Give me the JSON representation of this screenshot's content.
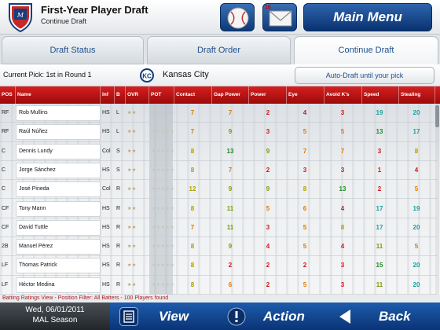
{
  "header": {
    "title": "First-Year Player Draft",
    "subtitle": "Continue Draft",
    "mail_count": "16",
    "main_menu": "Main Menu",
    "brand_color": "#0d3a78"
  },
  "tabs": [
    {
      "label": "Draft Status",
      "active": false
    },
    {
      "label": "Draft Order",
      "active": false
    },
    {
      "label": "Continue Draft",
      "active": true
    }
  ],
  "pick": {
    "current": "Current Pick: 1st in Round 1",
    "team": "Kansas City",
    "autodraft": "Auto-Draft until your pick"
  },
  "table": {
    "columns": [
      "POS",
      "Name",
      "Inf",
      "B",
      "OVR",
      "POT",
      "Contact",
      "Gap Power",
      "Power",
      "Eye",
      "Avoid K's",
      "Speed",
      "Stealing"
    ],
    "rows": [
      {
        "pos": "RF",
        "name": "Rob Mullins",
        "inf": "HS",
        "b": "L",
        "ovr": "★★",
        "pot": "★★★★★",
        "stats": [
          "7",
          "7",
          "2",
          "4",
          "3",
          "19",
          "20"
        ],
        "colors": [
          "#e07b00",
          "#e07b00",
          "#d01818",
          "#d01818",
          "#d01818",
          "#17a3a0",
          "#17a3a0"
        ]
      },
      {
        "pos": "RF",
        "name": "Raúl Núñez",
        "inf": "HS",
        "b": "L",
        "ovr": "★★",
        "pot": "★★★★★",
        "stats": [
          "7",
          "9",
          "3",
          "5",
          "5",
          "13",
          "17"
        ],
        "colors": [
          "#e07b00",
          "#7a9a10",
          "#d01818",
          "#e07b00",
          "#e07b00",
          "#1f8a2a",
          "#17a3a0"
        ]
      },
      {
        "pos": "C",
        "name": "Dennis Lundy",
        "inf": "Col",
        "b": "S",
        "ovr": "★★",
        "pot": "★★★★★",
        "stats": [
          "8",
          "13",
          "9",
          "7",
          "7",
          "3",
          "8"
        ],
        "colors": [
          "#b0a000",
          "#1f8a2a",
          "#7a9a10",
          "#e07b00",
          "#e07b00",
          "#d01818",
          "#b0a000"
        ]
      },
      {
        "pos": "C",
        "name": "Jorge Sánchez",
        "inf": "HS",
        "b": "S",
        "ovr": "★★",
        "pot": "★★★★★",
        "stats": [
          "8",
          "7",
          "2",
          "3",
          "3",
          "1",
          "4"
        ],
        "colors": [
          "#b0a000",
          "#e07b00",
          "#d01818",
          "#d01818",
          "#d01818",
          "#d01818",
          "#d01818"
        ]
      },
      {
        "pos": "C",
        "name": "José Pineda",
        "inf": "Col",
        "b": "R",
        "ovr": "★★",
        "pot": "★★★★★",
        "stats": [
          "12",
          "9",
          "9",
          "8",
          "13",
          "2",
          "5"
        ],
        "colors": [
          "#b0a000",
          "#7a9a10",
          "#7a9a10",
          "#b0a000",
          "#1f8a2a",
          "#d01818",
          "#e07b00"
        ]
      },
      {
        "pos": "CF",
        "name": "Tony Mann",
        "inf": "HS",
        "b": "R",
        "ovr": "★★",
        "pot": "★★★★★",
        "stats": [
          "8",
          "11",
          "5",
          "6",
          "4",
          "17",
          "19"
        ],
        "colors": [
          "#b0a000",
          "#7a9a10",
          "#e07b00",
          "#e07b00",
          "#d01818",
          "#17a3a0",
          "#17a3a0"
        ]
      },
      {
        "pos": "CF",
        "name": "David Tuttle",
        "inf": "HS",
        "b": "R",
        "ovr": "★★",
        "pot": "★★★★★",
        "stats": [
          "7",
          "11",
          "3",
          "5",
          "8",
          "17",
          "20"
        ],
        "colors": [
          "#e07b00",
          "#7a9a10",
          "#d01818",
          "#e07b00",
          "#b0a000",
          "#17a3a0",
          "#17a3a0"
        ]
      },
      {
        "pos": "2B",
        "name": "Manuel Pérez",
        "inf": "HS",
        "b": "R",
        "ovr": "★★",
        "pot": "★★★★★",
        "stats": [
          "8",
          "9",
          "4",
          "5",
          "4",
          "11",
          "5"
        ],
        "colors": [
          "#b0a000",
          "#7a9a10",
          "#d01818",
          "#e07b00",
          "#d01818",
          "#7a9a10",
          "#e07b00"
        ]
      },
      {
        "pos": "LF",
        "name": "Thomas Patrick",
        "inf": "HS",
        "b": "R",
        "ovr": "★★",
        "pot": "★★★★★",
        "stats": [
          "8",
          "2",
          "2",
          "2",
          "3",
          "15",
          "20"
        ],
        "colors": [
          "#b0a000",
          "#d01818",
          "#d01818",
          "#d01818",
          "#d01818",
          "#1f8a2a",
          "#17a3a0"
        ]
      },
      {
        "pos": "LF",
        "name": "Héctor Medina",
        "inf": "HS",
        "b": "R",
        "ovr": "★★",
        "pot": "★★★★★",
        "stats": [
          "8",
          "6",
          "2",
          "5",
          "3",
          "11",
          "20"
        ],
        "colors": [
          "#b0a000",
          "#e07b00",
          "#d01818",
          "#e07b00",
          "#d01818",
          "#7a9a10",
          "#17a3a0"
        ]
      }
    ]
  },
  "status_line": "Batting Ratings View - Position Filter: All Batters - 100 Players found",
  "footer": {
    "date": "Wed, 06/01/2011",
    "season": "MAL Season",
    "view": "View",
    "action": "Action",
    "back": "Back"
  },
  "icons": [
    "logo-icon",
    "baseball-icon",
    "mail-icon",
    "team-logo-icon",
    "list-icon",
    "action-icon",
    "back-arrow-icon"
  ]
}
